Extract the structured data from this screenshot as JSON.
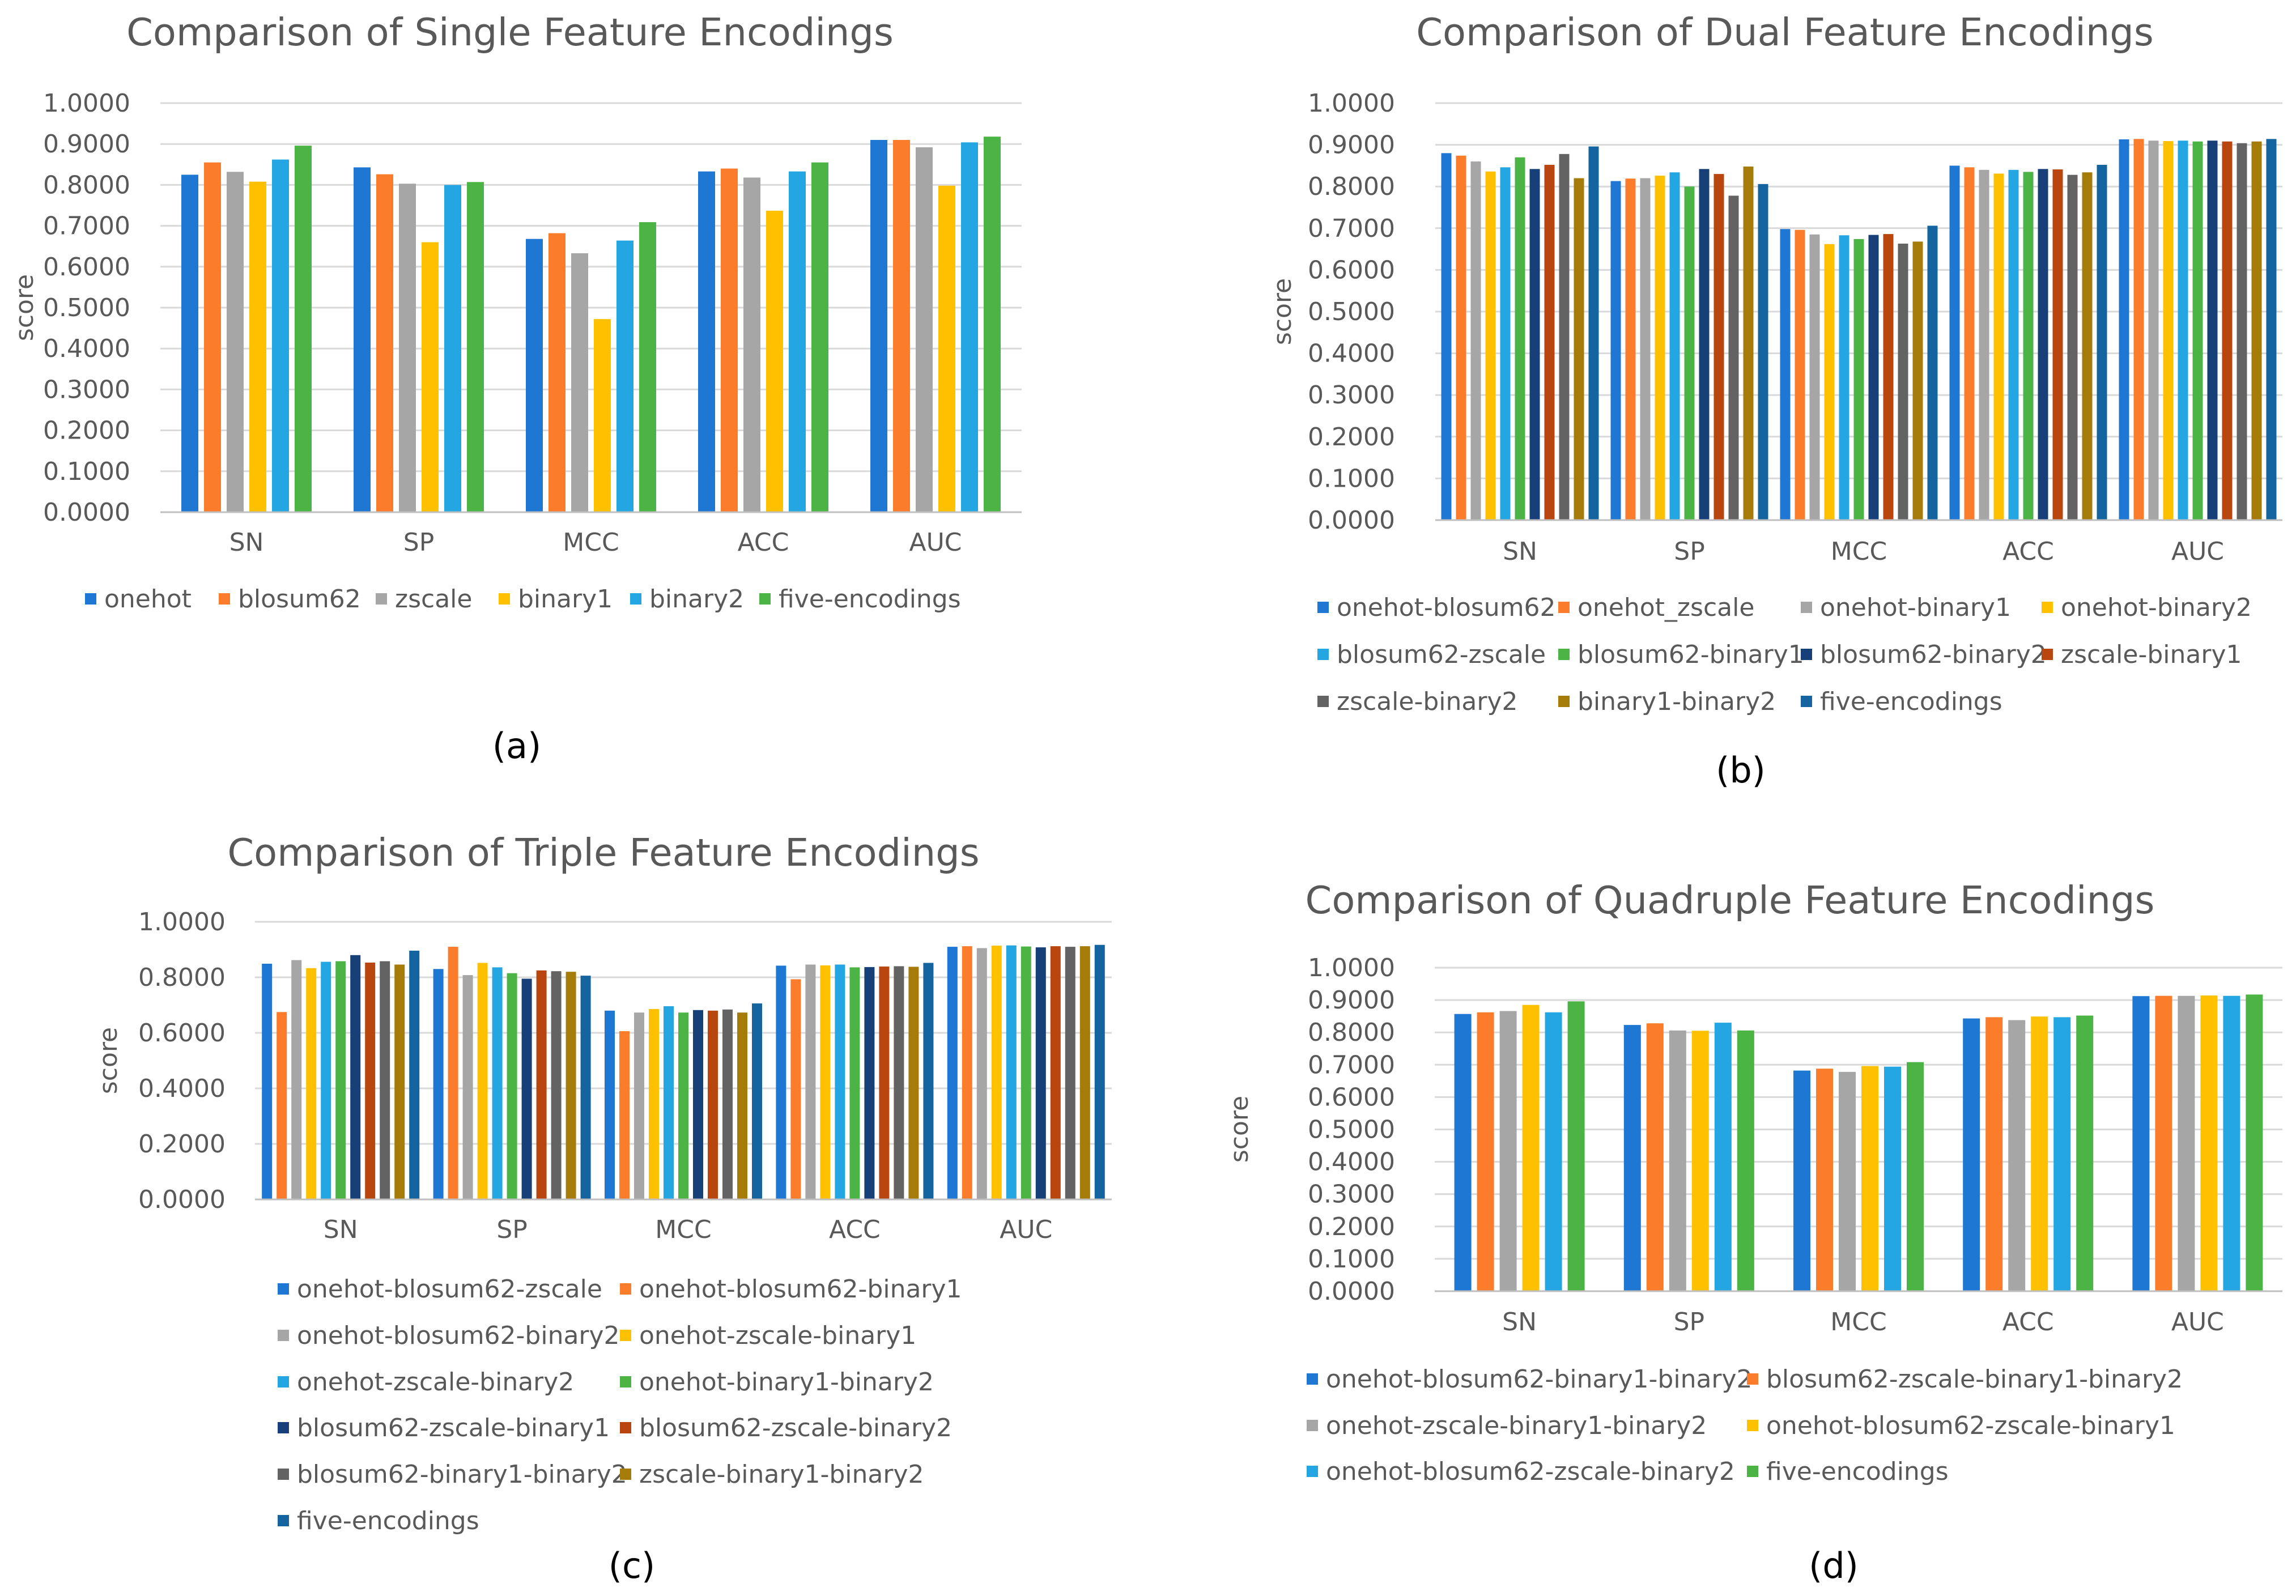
{
  "chart_data": [
    {
      "type": "bar",
      "id": "a",
      "title": "Comparison of Single Feature Encodings",
      "ylabel": "score",
      "xlabel": "",
      "caption": "(a)",
      "ylim": [
        0,
        1
      ],
      "yticks": [
        "0.0000",
        "0.1000",
        "0.2000",
        "0.3000",
        "0.4000",
        "0.5000",
        "0.6000",
        "0.7000",
        "0.8000",
        "0.9000",
        "1.0000"
      ],
      "categories": [
        "SN",
        "SP",
        "MCC",
        "ACC",
        "AUC"
      ],
      "legend_position": "bottom",
      "series": [
        {
          "name": "onehot",
          "color": "#1f77d4",
          "values": [
            0.825,
            0.843,
            0.668,
            0.833,
            0.91
          ]
        },
        {
          "name": "blosum62",
          "color": "#fb7c2b",
          "values": [
            0.855,
            0.826,
            0.682,
            0.84,
            0.91
          ]
        },
        {
          "name": "zscale",
          "color": "#a6a6a6",
          "values": [
            0.832,
            0.803,
            0.633,
            0.818,
            0.892
          ]
        },
        {
          "name": "binary1",
          "color": "#ffc000",
          "values": [
            0.808,
            0.66,
            0.472,
            0.737,
            0.798
          ]
        },
        {
          "name": "binary2",
          "color": "#23a6e1",
          "values": [
            0.862,
            0.8,
            0.664,
            0.833,
            0.904
          ]
        },
        {
          "name": "five-encodings",
          "color": "#4cb445",
          "values": [
            0.896,
            0.807,
            0.709,
            0.855,
            0.918
          ]
        }
      ]
    },
    {
      "type": "bar",
      "id": "b",
      "title": "Comparison of Dual Feature Encodings",
      "ylabel": "score",
      "xlabel": "",
      "caption": "(b)",
      "ylim": [
        0,
        1
      ],
      "yticks": [
        "0.0000",
        "0.1000",
        "0.2000",
        "0.3000",
        "0.4000",
        "0.5000",
        "0.6000",
        "0.7000",
        "0.8000",
        "0.9000",
        "1.0000"
      ],
      "categories": [
        "SN",
        "SP",
        "MCC",
        "ACC",
        "AUC"
      ],
      "legend_position": "bottom",
      "series": [
        {
          "name": "onehot-blosum62",
          "color": "#1f77d4",
          "values": [
            0.88,
            0.813,
            0.698,
            0.85,
            0.913
          ]
        },
        {
          "name": "onehot_zscale",
          "color": "#fb7c2b",
          "values": [
            0.874,
            0.819,
            0.696,
            0.846,
            0.914
          ]
        },
        {
          "name": "onehot-binary1",
          "color": "#a6a6a6",
          "values": [
            0.86,
            0.82,
            0.685,
            0.84,
            0.91
          ]
        },
        {
          "name": "onehot-binary2",
          "color": "#ffc000",
          "values": [
            0.836,
            0.826,
            0.662,
            0.831,
            0.909
          ]
        },
        {
          "name": "blosum62-zscale",
          "color": "#23a6e1",
          "values": [
            0.846,
            0.834,
            0.683,
            0.84,
            0.91
          ]
        },
        {
          "name": "blosum62-binary1",
          "color": "#4cb445",
          "values": [
            0.87,
            0.8,
            0.674,
            0.835,
            0.908
          ]
        },
        {
          "name": "blosum62-binary2",
          "color": "#173f78",
          "values": [
            0.842,
            0.842,
            0.684,
            0.842,
            0.91
          ]
        },
        {
          "name": "zscale-binary1",
          "color": "#b8460e",
          "values": [
            0.852,
            0.83,
            0.686,
            0.841,
            0.908
          ]
        },
        {
          "name": "zscale-binary2",
          "color": "#636363",
          "values": [
            0.878,
            0.778,
            0.663,
            0.828,
            0.904
          ]
        },
        {
          "name": "binary1-binary2",
          "color": "#a57c0a",
          "values": [
            0.82,
            0.848,
            0.668,
            0.834,
            0.908
          ]
        },
        {
          "name": "five-encodings",
          "color": "#1464a0",
          "values": [
            0.896,
            0.806,
            0.706,
            0.852,
            0.914
          ]
        }
      ]
    },
    {
      "type": "bar",
      "id": "c",
      "title": "Comparison of Triple Feature Encodings",
      "ylabel": "score",
      "xlabel": "",
      "caption": "(c)",
      "ylim": [
        0,
        1
      ],
      "yticks": [
        "0.0000",
        "0.2000",
        "0.4000",
        "0.6000",
        "0.8000",
        "1.0000"
      ],
      "categories": [
        "SN",
        "SP",
        "MCC",
        "ACC",
        "AUC"
      ],
      "legend_position": "bottom",
      "series": [
        {
          "name": "onehot-blosum62-zscale",
          "color": "#1f77d4",
          "values": [
            0.849,
            0.83,
            0.68,
            0.842,
            0.91
          ]
        },
        {
          "name": "onehot-blosum62-binary1",
          "color": "#fb7c2b",
          "values": [
            0.675,
            0.91,
            0.606,
            0.793,
            0.912
          ]
        },
        {
          "name": "onehot-blosum62-binary2",
          "color": "#a6a6a6",
          "values": [
            0.862,
            0.808,
            0.673,
            0.846,
            0.905
          ]
        },
        {
          "name": "onehot-zscale-binary1",
          "color": "#ffc000",
          "values": [
            0.833,
            0.852,
            0.686,
            0.843,
            0.914
          ]
        },
        {
          "name": "onehot-zscale-binary2",
          "color": "#23a6e1",
          "values": [
            0.856,
            0.836,
            0.696,
            0.846,
            0.915
          ]
        },
        {
          "name": "onehot-binary1-binary2",
          "color": "#4cb445",
          "values": [
            0.858,
            0.815,
            0.673,
            0.836,
            0.911
          ]
        },
        {
          "name": "blosum62-zscale-binary1",
          "color": "#173f78",
          "values": [
            0.88,
            0.795,
            0.682,
            0.837,
            0.908
          ]
        },
        {
          "name": "blosum62-zscale-binary2",
          "color": "#b8460e",
          "values": [
            0.853,
            0.825,
            0.68,
            0.839,
            0.912
          ]
        },
        {
          "name": "blosum62-binary1-binary2",
          "color": "#636363",
          "values": [
            0.858,
            0.822,
            0.684,
            0.84,
            0.91
          ]
        },
        {
          "name": "zscale-binary1-binary2",
          "color": "#a57c0a",
          "values": [
            0.846,
            0.82,
            0.673,
            0.838,
            0.912
          ]
        },
        {
          "name": "five-encodings",
          "color": "#1464a0",
          "values": [
            0.896,
            0.806,
            0.706,
            0.852,
            0.917
          ]
        }
      ]
    },
    {
      "type": "bar",
      "id": "d",
      "title": "Comparison of Quadruple Feature Encodings",
      "ylabel": "score",
      "xlabel": "",
      "caption": "(d)",
      "ylim": [
        0,
        1
      ],
      "yticks": [
        "0.0000",
        "0.1000",
        "0.2000",
        "0.3000",
        "0.4000",
        "0.5000",
        "0.6000",
        "0.7000",
        "0.8000",
        "0.9000",
        "1.0000"
      ],
      "categories": [
        "SN",
        "SP",
        "MCC",
        "ACC",
        "AUC"
      ],
      "legend_position": "bottom",
      "series": [
        {
          "name": "onehot-blosum62-binary1-binary2",
          "color": "#1f77d4",
          "values": [
            0.857,
            0.823,
            0.682,
            0.843,
            0.912
          ]
        },
        {
          "name": "blosum62-zscale-binary1-binary2",
          "color": "#fb7c2b",
          "values": [
            0.862,
            0.828,
            0.688,
            0.847,
            0.913
          ]
        },
        {
          "name": "onehot-zscale-binary1-binary2",
          "color": "#a6a6a6",
          "values": [
            0.866,
            0.806,
            0.678,
            0.838,
            0.913
          ]
        },
        {
          "name": "onehot-blosum62-zscale-binary1",
          "color": "#ffc000",
          "values": [
            0.885,
            0.805,
            0.696,
            0.849,
            0.914
          ]
        },
        {
          "name": "onehot-blosum62-zscale-binary2",
          "color": "#23a6e1",
          "values": [
            0.862,
            0.83,
            0.694,
            0.847,
            0.913
          ]
        },
        {
          "name": "five-encodings",
          "color": "#4cb445",
          "values": [
            0.896,
            0.806,
            0.708,
            0.852,
            0.917
          ]
        }
      ]
    }
  ]
}
